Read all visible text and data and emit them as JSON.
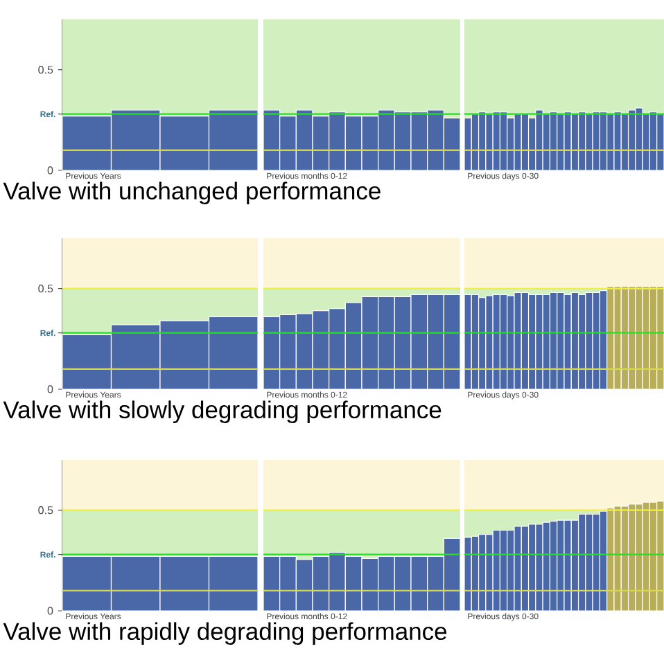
{
  "chart_data": [
    {
      "type": "bar",
      "title": "Valve with unchanged performance",
      "xlabel": "Previous Years",
      "categories": [
        null,
        null,
        null,
        null
      ],
      "tick_labels": "y",
      "ylim": [
        0,
        0.75
      ],
      "yticks": [
        0,
        0.5
      ],
      "color": "#4a67a8",
      "values": [
        0.27,
        0.3,
        0.27,
        0.3
      ],
      "bands": [
        {
          "axis": "y",
          "from": 0,
          "to": 0.75,
          "color": "#d2efc0"
        }
      ],
      "ref_lines": [
        {
          "axis": "y",
          "value": 0.28,
          "color": "#22e022",
          "label": "Ref."
        },
        {
          "axis": "y",
          "value": 0.1,
          "color": "#d8d84a"
        }
      ]
    },
    {
      "type": "bar",
      "xlabel": "Previous months 0-12",
      "categories": [
        null,
        null,
        null,
        null,
        null,
        null,
        null,
        null,
        null,
        null,
        null,
        null
      ],
      "tick_labels": false,
      "ylim": [
        0,
        0.75
      ],
      "color": "#4a67a8",
      "values": [
        0.3,
        0.27,
        0.3,
        0.27,
        0.29,
        0.27,
        0.27,
        0.3,
        0.29,
        0.29,
        0.3,
        0.26
      ],
      "bands": [
        {
          "axis": "y",
          "from": 0,
          "to": 0.75,
          "color": "#d2efc0"
        }
      ],
      "ref_lines": [
        {
          "axis": "y",
          "value": 0.28,
          "color": "#22e022"
        },
        {
          "axis": "y",
          "value": 0.1,
          "color": "#d8d84a"
        }
      ]
    },
    {
      "type": "bar",
      "xlabel": "Previous days 0-30",
      "categories": [
        null,
        null,
        null,
        null,
        null,
        null,
        null,
        null,
        null,
        null,
        null,
        null,
        null,
        null,
        null,
        null,
        null,
        null,
        null,
        null,
        null,
        null,
        null,
        null,
        null,
        null,
        null,
        null
      ],
      "tick_labels": false,
      "ylim": [
        0,
        0.75
      ],
      "color": "#4a67a8",
      "values": [
        0.26,
        0.28,
        0.29,
        0.28,
        0.29,
        0.29,
        0.26,
        0.28,
        0.28,
        0.26,
        0.3,
        0.28,
        0.29,
        0.28,
        0.29,
        0.28,
        0.29,
        0.28,
        0.29,
        0.29,
        0.28,
        0.29,
        0.28,
        0.3,
        0.31,
        0.28,
        0.29,
        0.28
      ],
      "bands": [
        {
          "axis": "y",
          "from": 0,
          "to": 0.75,
          "color": "#d2efc0"
        }
      ],
      "ref_lines": [
        {
          "axis": "y",
          "value": 0.28,
          "color": "#22e022"
        },
        {
          "axis": "y",
          "value": 0.1,
          "color": "#d8d84a"
        }
      ]
    },
    {
      "type": "bar",
      "title": "Valve with slowly degrading performance",
      "xlabel": "Previous Years",
      "categories": [
        null,
        null,
        null,
        null
      ],
      "tick_labels": "y",
      "ylim": [
        0,
        0.75
      ],
      "yticks": [
        0,
        0.5
      ],
      "color": "#4a67a8",
      "values": [
        0.27,
        0.32,
        0.34,
        0.36
      ],
      "bands": [
        {
          "axis": "y",
          "from": 0,
          "to": 0.5,
          "color": "#d2efc0"
        },
        {
          "axis": "y",
          "from": 0.5,
          "to": 0.75,
          "color": "#fcf5d8"
        }
      ],
      "ref_lines": [
        {
          "axis": "y",
          "value": 0.28,
          "color": "#22e022",
          "label": "Ref."
        },
        {
          "axis": "y",
          "value": 0.1,
          "color": "#d8d84a"
        },
        {
          "axis": "y",
          "value": 0.5,
          "color": "#f0f040"
        }
      ]
    },
    {
      "type": "bar",
      "xlabel": "Previous months 0-12",
      "categories": [
        null,
        null,
        null,
        null,
        null,
        null,
        null,
        null,
        null,
        null,
        null,
        null
      ],
      "tick_labels": false,
      "ylim": [
        0,
        0.75
      ],
      "color": "#4a67a8",
      "values": [
        0.36,
        0.37,
        0.375,
        0.39,
        0.4,
        0.43,
        0.46,
        0.46,
        0.46,
        0.47,
        0.47,
        0.47
      ],
      "bands": [
        {
          "axis": "y",
          "from": 0,
          "to": 0.5,
          "color": "#d2efc0"
        },
        {
          "axis": "y",
          "from": 0.5,
          "to": 0.75,
          "color": "#fcf5d8"
        }
      ],
      "ref_lines": [
        {
          "axis": "y",
          "value": 0.28,
          "color": "#22e022"
        },
        {
          "axis": "y",
          "value": 0.1,
          "color": "#d8d84a"
        },
        {
          "axis": "y",
          "value": 0.5,
          "color": "#f0f040"
        }
      ]
    },
    {
      "type": "bar",
      "xlabel": "Previous days 0-30",
      "categories": [
        null,
        null,
        null,
        null,
        null,
        null,
        null,
        null,
        null,
        null,
        null,
        null,
        null,
        null,
        null,
        null,
        null,
        null,
        null,
        null,
        null,
        null,
        null,
        null,
        null,
        null,
        null,
        null
      ],
      "tick_labels": false,
      "ylim": [
        0,
        0.75
      ],
      "values": [
        0.47,
        0.47,
        0.455,
        0.465,
        0.47,
        0.47,
        0.465,
        0.48,
        0.48,
        0.47,
        0.47,
        0.47,
        0.48,
        0.48,
        0.47,
        0.48,
        0.47,
        0.48,
        0.48,
        0.49,
        0.51,
        0.51,
        0.51,
        0.51,
        0.51,
        0.51,
        0.51,
        0.51
      ],
      "colors": [
        "#4a67a8",
        "#4a67a8",
        "#4a67a8",
        "#4a67a8",
        "#4a67a8",
        "#4a67a8",
        "#4a67a8",
        "#4a67a8",
        "#4a67a8",
        "#4a67a8",
        "#4a67a8",
        "#4a67a8",
        "#4a67a8",
        "#4a67a8",
        "#4a67a8",
        "#4a67a8",
        "#4a67a8",
        "#4a67a8",
        "#4a67a8",
        "#4a67a8",
        "#b8ad5a",
        "#b8ad5a",
        "#b8ad5a",
        "#b8ad5a",
        "#b8ad5a",
        "#b8ad5a",
        "#b8ad5a",
        "#b8ad5a"
      ],
      "bands": [
        {
          "axis": "y",
          "from": 0,
          "to": 0.5,
          "color": "#d2efc0"
        },
        {
          "axis": "y",
          "from": 0.5,
          "to": 0.75,
          "color": "#fcf5d8"
        }
      ],
      "ref_lines": [
        {
          "axis": "y",
          "value": 0.28,
          "color": "#22e022"
        },
        {
          "axis": "y",
          "value": 0.1,
          "color": "#d8d84a"
        },
        {
          "axis": "y",
          "value": 0.5,
          "color": "#f0f040"
        }
      ]
    },
    {
      "type": "bar",
      "title": "Valve with rapidly degrading performance",
      "xlabel": "Previous Years",
      "categories": [
        null,
        null,
        null,
        null
      ],
      "tick_labels": "y",
      "ylim": [
        0,
        0.75
      ],
      "yticks": [
        0,
        0.5
      ],
      "color": "#4a67a8",
      "values": [
        0.27,
        0.27,
        0.27,
        0.27
      ],
      "bands": [
        {
          "axis": "y",
          "from": 0,
          "to": 0.5,
          "color": "#d2efc0"
        },
        {
          "axis": "y",
          "from": 0.5,
          "to": 0.75,
          "color": "#fcf5d8"
        }
      ],
      "ref_lines": [
        {
          "axis": "y",
          "value": 0.28,
          "color": "#22e022",
          "label": "Ref."
        },
        {
          "axis": "y",
          "value": 0.1,
          "color": "#d8d84a"
        },
        {
          "axis": "y",
          "value": 0.5,
          "color": "#f0f040"
        }
      ]
    },
    {
      "type": "bar",
      "xlabel": "Previous months 0-12",
      "categories": [
        null,
        null,
        null,
        null,
        null,
        null,
        null,
        null,
        null,
        null,
        null,
        null
      ],
      "tick_labels": false,
      "ylim": [
        0,
        0.75
      ],
      "color": "#4a67a8",
      "values": [
        0.27,
        0.27,
        0.255,
        0.27,
        0.29,
        0.27,
        0.26,
        0.27,
        0.27,
        0.27,
        0.27,
        0.36
      ],
      "bands": [
        {
          "axis": "y",
          "from": 0,
          "to": 0.5,
          "color": "#d2efc0"
        },
        {
          "axis": "y",
          "from": 0.5,
          "to": 0.75,
          "color": "#fcf5d8"
        }
      ],
      "ref_lines": [
        {
          "axis": "y",
          "value": 0.28,
          "color": "#22e022"
        },
        {
          "axis": "y",
          "value": 0.1,
          "color": "#d8d84a"
        },
        {
          "axis": "y",
          "value": 0.5,
          "color": "#f0f040"
        }
      ]
    },
    {
      "type": "bar",
      "xlabel": "Previous days 0-30",
      "categories": [
        null,
        null,
        null,
        null,
        null,
        null,
        null,
        null,
        null,
        null,
        null,
        null,
        null,
        null,
        null,
        null,
        null,
        null,
        null,
        null,
        null,
        null,
        null,
        null,
        null,
        null,
        null,
        null
      ],
      "tick_labels": false,
      "ylim": [
        0,
        0.75
      ],
      "values": [
        0.365,
        0.37,
        0.38,
        0.38,
        0.4,
        0.4,
        0.4,
        0.42,
        0.42,
        0.43,
        0.43,
        0.44,
        0.445,
        0.45,
        0.45,
        0.45,
        0.48,
        0.48,
        0.48,
        0.495,
        0.51,
        0.52,
        0.52,
        0.53,
        0.53,
        0.54,
        0.54,
        0.545
      ],
      "colors": [
        "#4a67a8",
        "#4a67a8",
        "#4a67a8",
        "#4a67a8",
        "#4a67a8",
        "#4a67a8",
        "#4a67a8",
        "#4a67a8",
        "#4a67a8",
        "#4a67a8",
        "#4a67a8",
        "#4a67a8",
        "#4a67a8",
        "#4a67a8",
        "#4a67a8",
        "#4a67a8",
        "#4a67a8",
        "#4a67a8",
        "#4a67a8",
        "#4a67a8",
        "#b8ad5a",
        "#b8ad5a",
        "#b8ad5a",
        "#b8ad5a",
        "#b8ad5a",
        "#b8ad5a",
        "#b8ad5a",
        "#b8ad5a"
      ],
      "bands": [
        {
          "axis": "y",
          "from": 0,
          "to": 0.5,
          "color": "#d2efc0"
        },
        {
          "axis": "y",
          "from": 0.5,
          "to": 0.75,
          "color": "#fcf5d8"
        }
      ],
      "ref_lines": [
        {
          "axis": "y",
          "value": 0.28,
          "color": "#22e022"
        },
        {
          "axis": "y",
          "value": 0.1,
          "color": "#d8d84a"
        },
        {
          "axis": "y",
          "value": 0.5,
          "color": "#f0f040"
        }
      ]
    }
  ]
}
